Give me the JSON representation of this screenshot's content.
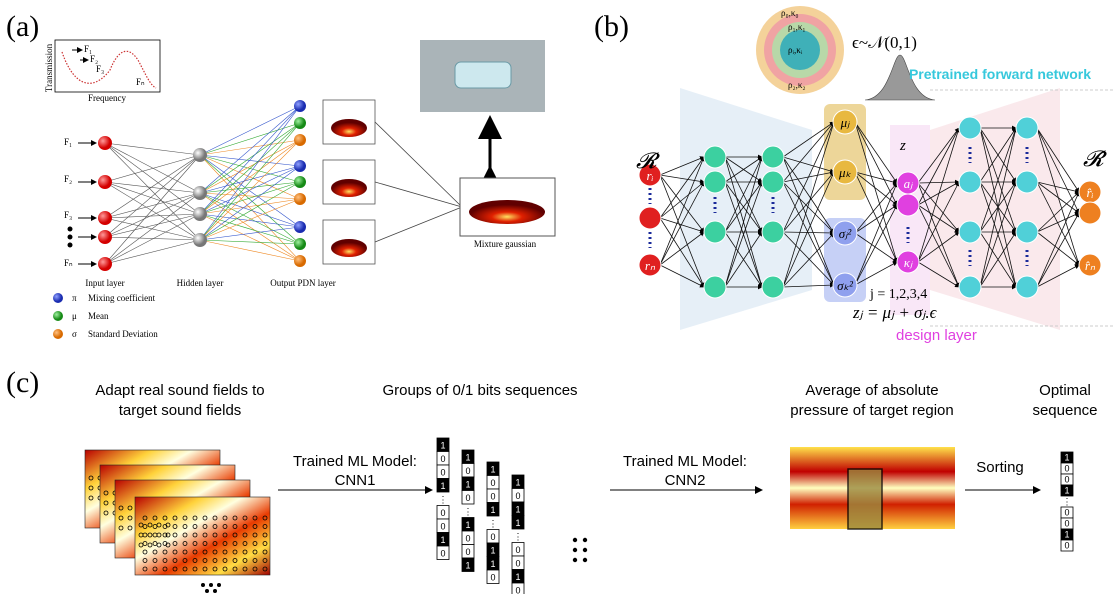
{
  "panel_a": {
    "label": "(a)",
    "inset": {
      "y_label": "Transmission",
      "x_label": "Frequency",
      "curves": [
        "F₁",
        "F₂",
        "F₃",
        "Fₙ"
      ]
    },
    "inputs": [
      "F₁",
      "F₂",
      "F₃",
      "Fₙ"
    ],
    "layers": [
      "Input layer",
      "Hidden layer",
      "Output PDN layer"
    ],
    "mixture": "Mixture gaussian",
    "legend": [
      {
        "symbol": "π",
        "text": "Mixing coefficient"
      },
      {
        "symbol": "μ",
        "text": "Mean"
      },
      {
        "symbol": "σ",
        "text": "Standard Deviation"
      }
    ]
  },
  "panel_b": {
    "label": "(b)",
    "inset_rings": [
      "ρ₀,κ₀",
      "ρ₁,κ₁",
      "ρ₂,κ₂",
      "ρᵢ,κᵢ"
    ],
    "noise": "ϵ~𝒩(0,1)",
    "pretrained": "Pretrained forward network",
    "input_set": "𝓡",
    "inputs": [
      "rᵢ",
      "rₙ"
    ],
    "means": [
      "μⱼ",
      "μₖ"
    ],
    "variances": [
      "σⱼ²",
      "σₖ²"
    ],
    "latent": "z",
    "design_nodes": [
      "aⱼ",
      "κⱼ"
    ],
    "output_set": "𝓡̂",
    "outputs": [
      "r̂ᵢ",
      "r̂ₙ"
    ],
    "index_range": "j = 1,2,3,4",
    "equation": "zⱼ = μⱼ + σⱼ.ϵ",
    "design_layer": "design layer"
  },
  "panel_c": {
    "label": "(c)",
    "titles": [
      [
        "Adapt real sound fields to",
        "target sound fields"
      ],
      [
        "Groups of 0/1 bits sequences"
      ],
      [
        "Average of absolute",
        "pressure of target region"
      ],
      [
        "Optimal",
        "sequence"
      ]
    ],
    "arrows": [
      [
        "Trained ML Model:",
        "CNN1"
      ],
      [
        "Trained ML Model:",
        "CNN2"
      ],
      [
        "Sorting"
      ]
    ],
    "bit_groups": [
      [
        "1",
        "0",
        "0",
        "1",
        "⋮",
        "0",
        "0",
        "1",
        "0"
      ],
      [
        "1",
        "0",
        "1",
        "0",
        "⋮",
        "1",
        "0",
        "0",
        "1"
      ],
      [
        "1",
        "0",
        "0",
        "1",
        "⋮",
        "0",
        "1",
        "1",
        "0"
      ],
      [
        "1",
        "0",
        "1",
        "1",
        "⋮",
        "0",
        "0",
        "1",
        "0"
      ]
    ],
    "optimal": [
      "1",
      "0",
      "0",
      "1",
      "⋮",
      "0",
      "0",
      "1",
      "0"
    ]
  }
}
